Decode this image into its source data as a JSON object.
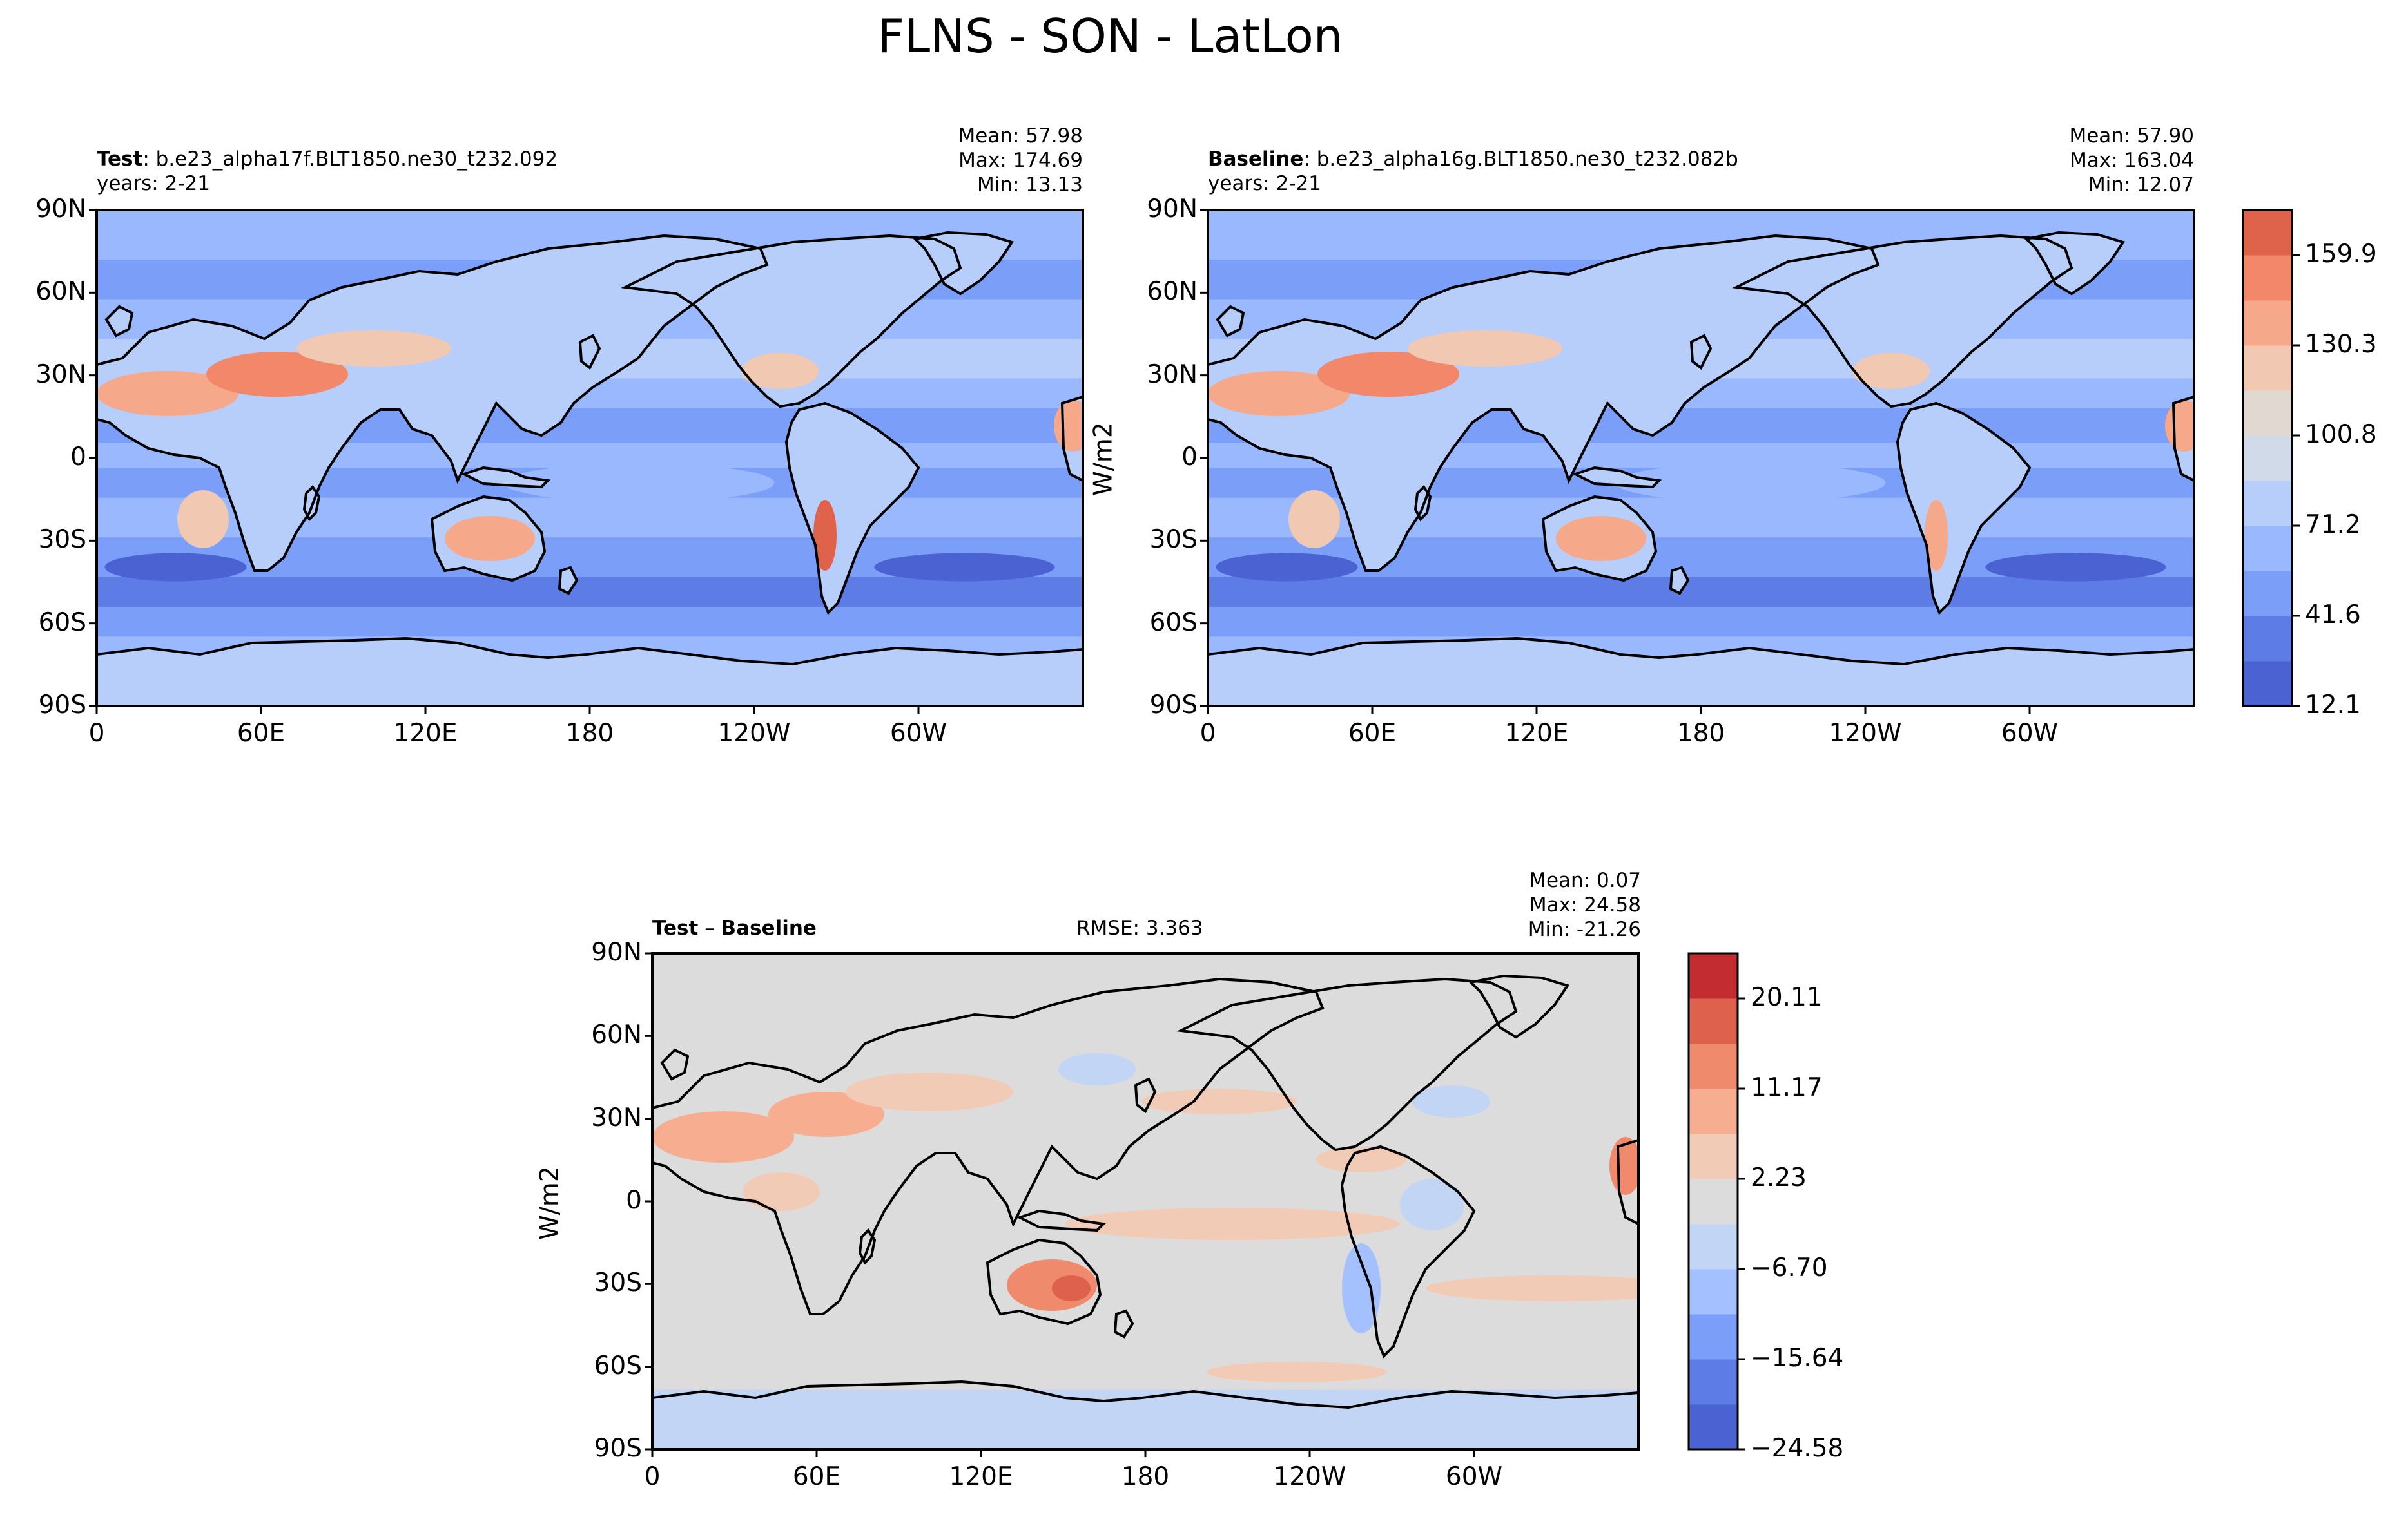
{
  "title": "FLNS - SON - LatLon",
  "colors": {
    "frame": "#000000",
    "abs_levels": [
      "#4b62d2",
      "#5d7ce6",
      "#7b9ff8",
      "#9ab8fe",
      "#b7cdfa",
      "#d1dae9",
      "#e1d9d1",
      "#f1c9b2",
      "#f6a98a",
      "#f2876a",
      "#df634b",
      "#c62a2c"
    ],
    "diff_levels": [
      "#4b62d2",
      "#5d7ce6",
      "#7b9ff8",
      "#a4c0fe",
      "#c3d5f4",
      "#dcdcdc",
      "#f2cbb7",
      "#f7ad90",
      "#f08a6c",
      "#de614d",
      "#c32d31"
    ]
  },
  "panels": {
    "test": {
      "name": "Test",
      "case": "b.e23_alpha17f.BLT1850.ne30_t232.092",
      "years": "years: 2-21",
      "mean": "Mean: 57.98",
      "max": "Max: 174.69",
      "min": "Min: 13.13"
    },
    "baseline": {
      "name": "Baseline",
      "case": "b.e23_alpha16g.BLT1850.ne30_t232.082b",
      "years": "years: 2-21",
      "mean": "Mean: 57.90",
      "max": "Max: 163.04",
      "min": "Min: 12.07"
    },
    "diff": {
      "name_a": "Test",
      "minus": "–",
      "name_b": "Baseline",
      "rmse": "RMSE: 3.363",
      "mean": "Mean:  0.07",
      "max": "Max: 24.58",
      "min": "Min: -21.26"
    }
  },
  "axes": {
    "lat_ticks": [
      "90N",
      "60N",
      "30N",
      "0",
      "30S",
      "60S",
      "90S"
    ],
    "lon_ticks": [
      "0",
      "60E",
      "120E",
      "180",
      "120W",
      "60W"
    ],
    "units": "W/m2"
  },
  "colorbars": {
    "absolute": {
      "ticks": [
        "159.9",
        "130.3",
        "100.8",
        "71.2",
        "41.6",
        "12.1"
      ],
      "levels": 11
    },
    "difference": {
      "ticks": [
        "20.11",
        "11.17",
        "2.23",
        "−6.70",
        "−15.64",
        "−24.58"
      ],
      "levels": 11
    }
  }
}
